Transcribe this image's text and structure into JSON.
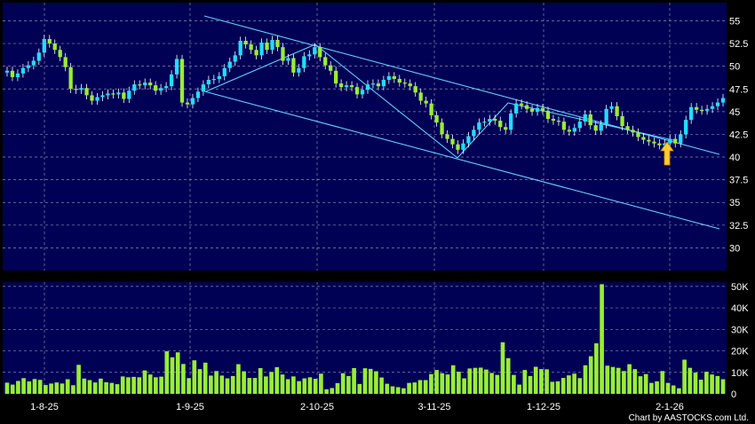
{
  "chart_data": [
    {
      "type": "candlestick",
      "title": "",
      "ylim": [
        27.5,
        57
      ],
      "grid": true,
      "y_ticks": [
        "55",
        "52.5",
        "50",
        "47.5",
        "45",
        "42.5",
        "40",
        "37.5",
        "35",
        "32.5",
        "30"
      ],
      "x_ticks": [
        "1-8-25",
        "1-9-25",
        "2-10-25",
        "3-11-25",
        "1-12-25",
        "2-1-26"
      ],
      "colors": {
        "background": "#000055",
        "up": "#22ddff",
        "down": "#99ee33",
        "grid": "#8a8ab0",
        "trendline": "#66ccff",
        "arrow": "#ffcc33"
      },
      "close": [
        49.5,
        48.8,
        49.2,
        49.8,
        50.1,
        50.6,
        51.5,
        53.0,
        52.5,
        51.8,
        51.0,
        49.9,
        47.5,
        47.4,
        47.6,
        46.8,
        46.2,
        46.6,
        46.8,
        47.0,
        46.9,
        47.1,
        46.4,
        47.3,
        48.0,
        47.9,
        48.2,
        47.9,
        47.3,
        47.6,
        47.8,
        49.1,
        50.8,
        46.0,
        45.8,
        46.5,
        47.2,
        48.0,
        48.5,
        48.6,
        48.9,
        49.8,
        50.5,
        51.2,
        52.8,
        52.4,
        51.8,
        51.2,
        52.6,
        51.8,
        52.9,
        52.1,
        50.6,
        50.9,
        49.3,
        49.8,
        51.1,
        51.3,
        52.1,
        51.0,
        50.1,
        49.5,
        48.1,
        47.7,
        47.9,
        47.7,
        46.9,
        47.4,
        48.0,
        48.1,
        47.8,
        48.5,
        48.9,
        48.6,
        48.2,
        48.1,
        47.8,
        47.1,
        46.2,
        45.9,
        44.6,
        43.8,
        42.5,
        42.0,
        41.4,
        40.8,
        41.5,
        42.3,
        43.0,
        43.8,
        43.9,
        44.2,
        44.0,
        43.3,
        43.0,
        44.8,
        45.9,
        45.7,
        45.3,
        45.0,
        45.4,
        45.1,
        44.2,
        44.0,
        43.9,
        43.0,
        42.8,
        43.2,
        43.9,
        44.7,
        43.5,
        42.9,
        43.6,
        45.3,
        45.6,
        44.5,
        43.4,
        43.0,
        42.7,
        42.2,
        41.9,
        41.7,
        41.5,
        41.3,
        41.5,
        42.0,
        41.5,
        42.5,
        44.1,
        45.5,
        45.2,
        45.1,
        45.3,
        45.6,
        46.0,
        46.5
      ]
    },
    {
      "type": "bar",
      "title": "",
      "ylim": [
        0,
        52000
      ],
      "grid": true,
      "y_ticks": [
        "50K",
        "40K",
        "30K",
        "20K",
        "10K",
        "0"
      ],
      "values": [
        5200,
        4300,
        6000,
        7300,
        5800,
        6900,
        6500,
        4100,
        4800,
        5300,
        4800,
        6800,
        4000,
        13500,
        7100,
        6400,
        5300,
        7100,
        5400,
        5100,
        4500,
        8100,
        7700,
        7900,
        7700,
        10900,
        9000,
        7700,
        8000,
        19800,
        17000,
        19300,
        13900,
        7300,
        15600,
        11500,
        14500,
        8500,
        10600,
        8500,
        7200,
        8300,
        13800,
        10500,
        7400,
        7400,
        12000,
        8100,
        10200,
        12400,
        9000,
        6800,
        8100,
        5900,
        7200,
        7700,
        7000,
        9400,
        2100,
        2700,
        5000,
        9600,
        8300,
        12000,
        4600,
        11900,
        11600,
        10500,
        7600,
        4700,
        3500,
        3100,
        2600,
        5100,
        5300,
        6400,
        6400,
        9200,
        11100,
        9600,
        9000,
        13300,
        10300,
        7200,
        11800,
        12100,
        12200,
        11300,
        9700,
        8800,
        24000,
        16600,
        8800,
        4300,
        11100,
        8300,
        12600,
        11500,
        11400,
        5600,
        5800,
        7400,
        8600,
        9400,
        7300,
        13300,
        17500,
        23500,
        51000,
        13100,
        12500,
        12100,
        10600,
        13800,
        11500,
        8200,
        9200,
        5100,
        5800,
        10600,
        5100,
        3900,
        2600,
        15900,
        12100,
        9900,
        6600,
        10300,
        9000,
        8300,
        6800
      ]
    }
  ],
  "footer": {
    "credit": "Chart by AASTOCKS.com Ltd."
  },
  "annotations": {
    "arrow_icon": "up-arrow-icon"
  }
}
